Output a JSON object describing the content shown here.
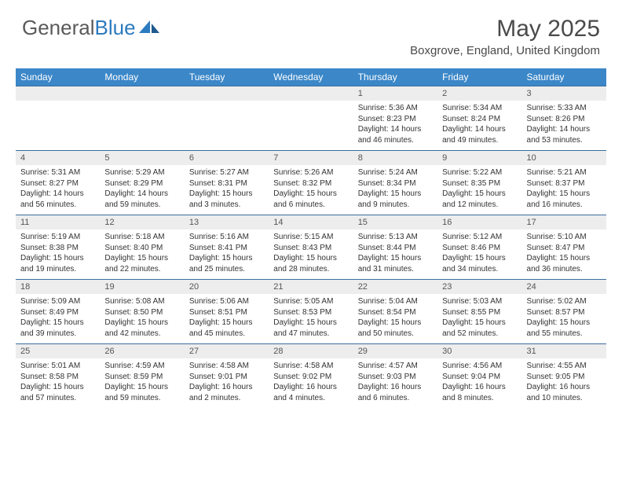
{
  "brand": {
    "part1": "General",
    "part2": "Blue"
  },
  "title": "May 2025",
  "location": "Boxgrove, England, United Kingdom",
  "colors": {
    "header_bg": "#3b87c8",
    "header_text": "#ffffff",
    "daynum_bg": "#ededed",
    "week_border": "#3b6fa0",
    "text": "#333333",
    "brand_gray": "#5a5a5a",
    "brand_blue": "#2b7bbf",
    "page_bg": "#ffffff"
  },
  "fonts": {
    "title_size": 30,
    "location_size": 15,
    "dayheader_size": 12,
    "daynum_size": 11,
    "cell_size": 10
  },
  "day_headers": [
    "Sunday",
    "Monday",
    "Tuesday",
    "Wednesday",
    "Thursday",
    "Friday",
    "Saturday"
  ],
  "weeks": [
    [
      null,
      null,
      null,
      null,
      {
        "n": "1",
        "sr": "5:36 AM",
        "ss": "8:23 PM",
        "dl": "14 hours and 46 minutes."
      },
      {
        "n": "2",
        "sr": "5:34 AM",
        "ss": "8:24 PM",
        "dl": "14 hours and 49 minutes."
      },
      {
        "n": "3",
        "sr": "5:33 AM",
        "ss": "8:26 PM",
        "dl": "14 hours and 53 minutes."
      }
    ],
    [
      {
        "n": "4",
        "sr": "5:31 AM",
        "ss": "8:27 PM",
        "dl": "14 hours and 56 minutes."
      },
      {
        "n": "5",
        "sr": "5:29 AM",
        "ss": "8:29 PM",
        "dl": "14 hours and 59 minutes."
      },
      {
        "n": "6",
        "sr": "5:27 AM",
        "ss": "8:31 PM",
        "dl": "15 hours and 3 minutes."
      },
      {
        "n": "7",
        "sr": "5:26 AM",
        "ss": "8:32 PM",
        "dl": "15 hours and 6 minutes."
      },
      {
        "n": "8",
        "sr": "5:24 AM",
        "ss": "8:34 PM",
        "dl": "15 hours and 9 minutes."
      },
      {
        "n": "9",
        "sr": "5:22 AM",
        "ss": "8:35 PM",
        "dl": "15 hours and 12 minutes."
      },
      {
        "n": "10",
        "sr": "5:21 AM",
        "ss": "8:37 PM",
        "dl": "15 hours and 16 minutes."
      }
    ],
    [
      {
        "n": "11",
        "sr": "5:19 AM",
        "ss": "8:38 PM",
        "dl": "15 hours and 19 minutes."
      },
      {
        "n": "12",
        "sr": "5:18 AM",
        "ss": "8:40 PM",
        "dl": "15 hours and 22 minutes."
      },
      {
        "n": "13",
        "sr": "5:16 AM",
        "ss": "8:41 PM",
        "dl": "15 hours and 25 minutes."
      },
      {
        "n": "14",
        "sr": "5:15 AM",
        "ss": "8:43 PM",
        "dl": "15 hours and 28 minutes."
      },
      {
        "n": "15",
        "sr": "5:13 AM",
        "ss": "8:44 PM",
        "dl": "15 hours and 31 minutes."
      },
      {
        "n": "16",
        "sr": "5:12 AM",
        "ss": "8:46 PM",
        "dl": "15 hours and 34 minutes."
      },
      {
        "n": "17",
        "sr": "5:10 AM",
        "ss": "8:47 PM",
        "dl": "15 hours and 36 minutes."
      }
    ],
    [
      {
        "n": "18",
        "sr": "5:09 AM",
        "ss": "8:49 PM",
        "dl": "15 hours and 39 minutes."
      },
      {
        "n": "19",
        "sr": "5:08 AM",
        "ss": "8:50 PM",
        "dl": "15 hours and 42 minutes."
      },
      {
        "n": "20",
        "sr": "5:06 AM",
        "ss": "8:51 PM",
        "dl": "15 hours and 45 minutes."
      },
      {
        "n": "21",
        "sr": "5:05 AM",
        "ss": "8:53 PM",
        "dl": "15 hours and 47 minutes."
      },
      {
        "n": "22",
        "sr": "5:04 AM",
        "ss": "8:54 PM",
        "dl": "15 hours and 50 minutes."
      },
      {
        "n": "23",
        "sr": "5:03 AM",
        "ss": "8:55 PM",
        "dl": "15 hours and 52 minutes."
      },
      {
        "n": "24",
        "sr": "5:02 AM",
        "ss": "8:57 PM",
        "dl": "15 hours and 55 minutes."
      }
    ],
    [
      {
        "n": "25",
        "sr": "5:01 AM",
        "ss": "8:58 PM",
        "dl": "15 hours and 57 minutes."
      },
      {
        "n": "26",
        "sr": "4:59 AM",
        "ss": "8:59 PM",
        "dl": "15 hours and 59 minutes."
      },
      {
        "n": "27",
        "sr": "4:58 AM",
        "ss": "9:01 PM",
        "dl": "16 hours and 2 minutes."
      },
      {
        "n": "28",
        "sr": "4:58 AM",
        "ss": "9:02 PM",
        "dl": "16 hours and 4 minutes."
      },
      {
        "n": "29",
        "sr": "4:57 AM",
        "ss": "9:03 PM",
        "dl": "16 hours and 6 minutes."
      },
      {
        "n": "30",
        "sr": "4:56 AM",
        "ss": "9:04 PM",
        "dl": "16 hours and 8 minutes."
      },
      {
        "n": "31",
        "sr": "4:55 AM",
        "ss": "9:05 PM",
        "dl": "16 hours and 10 minutes."
      }
    ]
  ],
  "labels": {
    "sunrise": "Sunrise: ",
    "sunset": "Sunset: ",
    "daylight": "Daylight: "
  }
}
